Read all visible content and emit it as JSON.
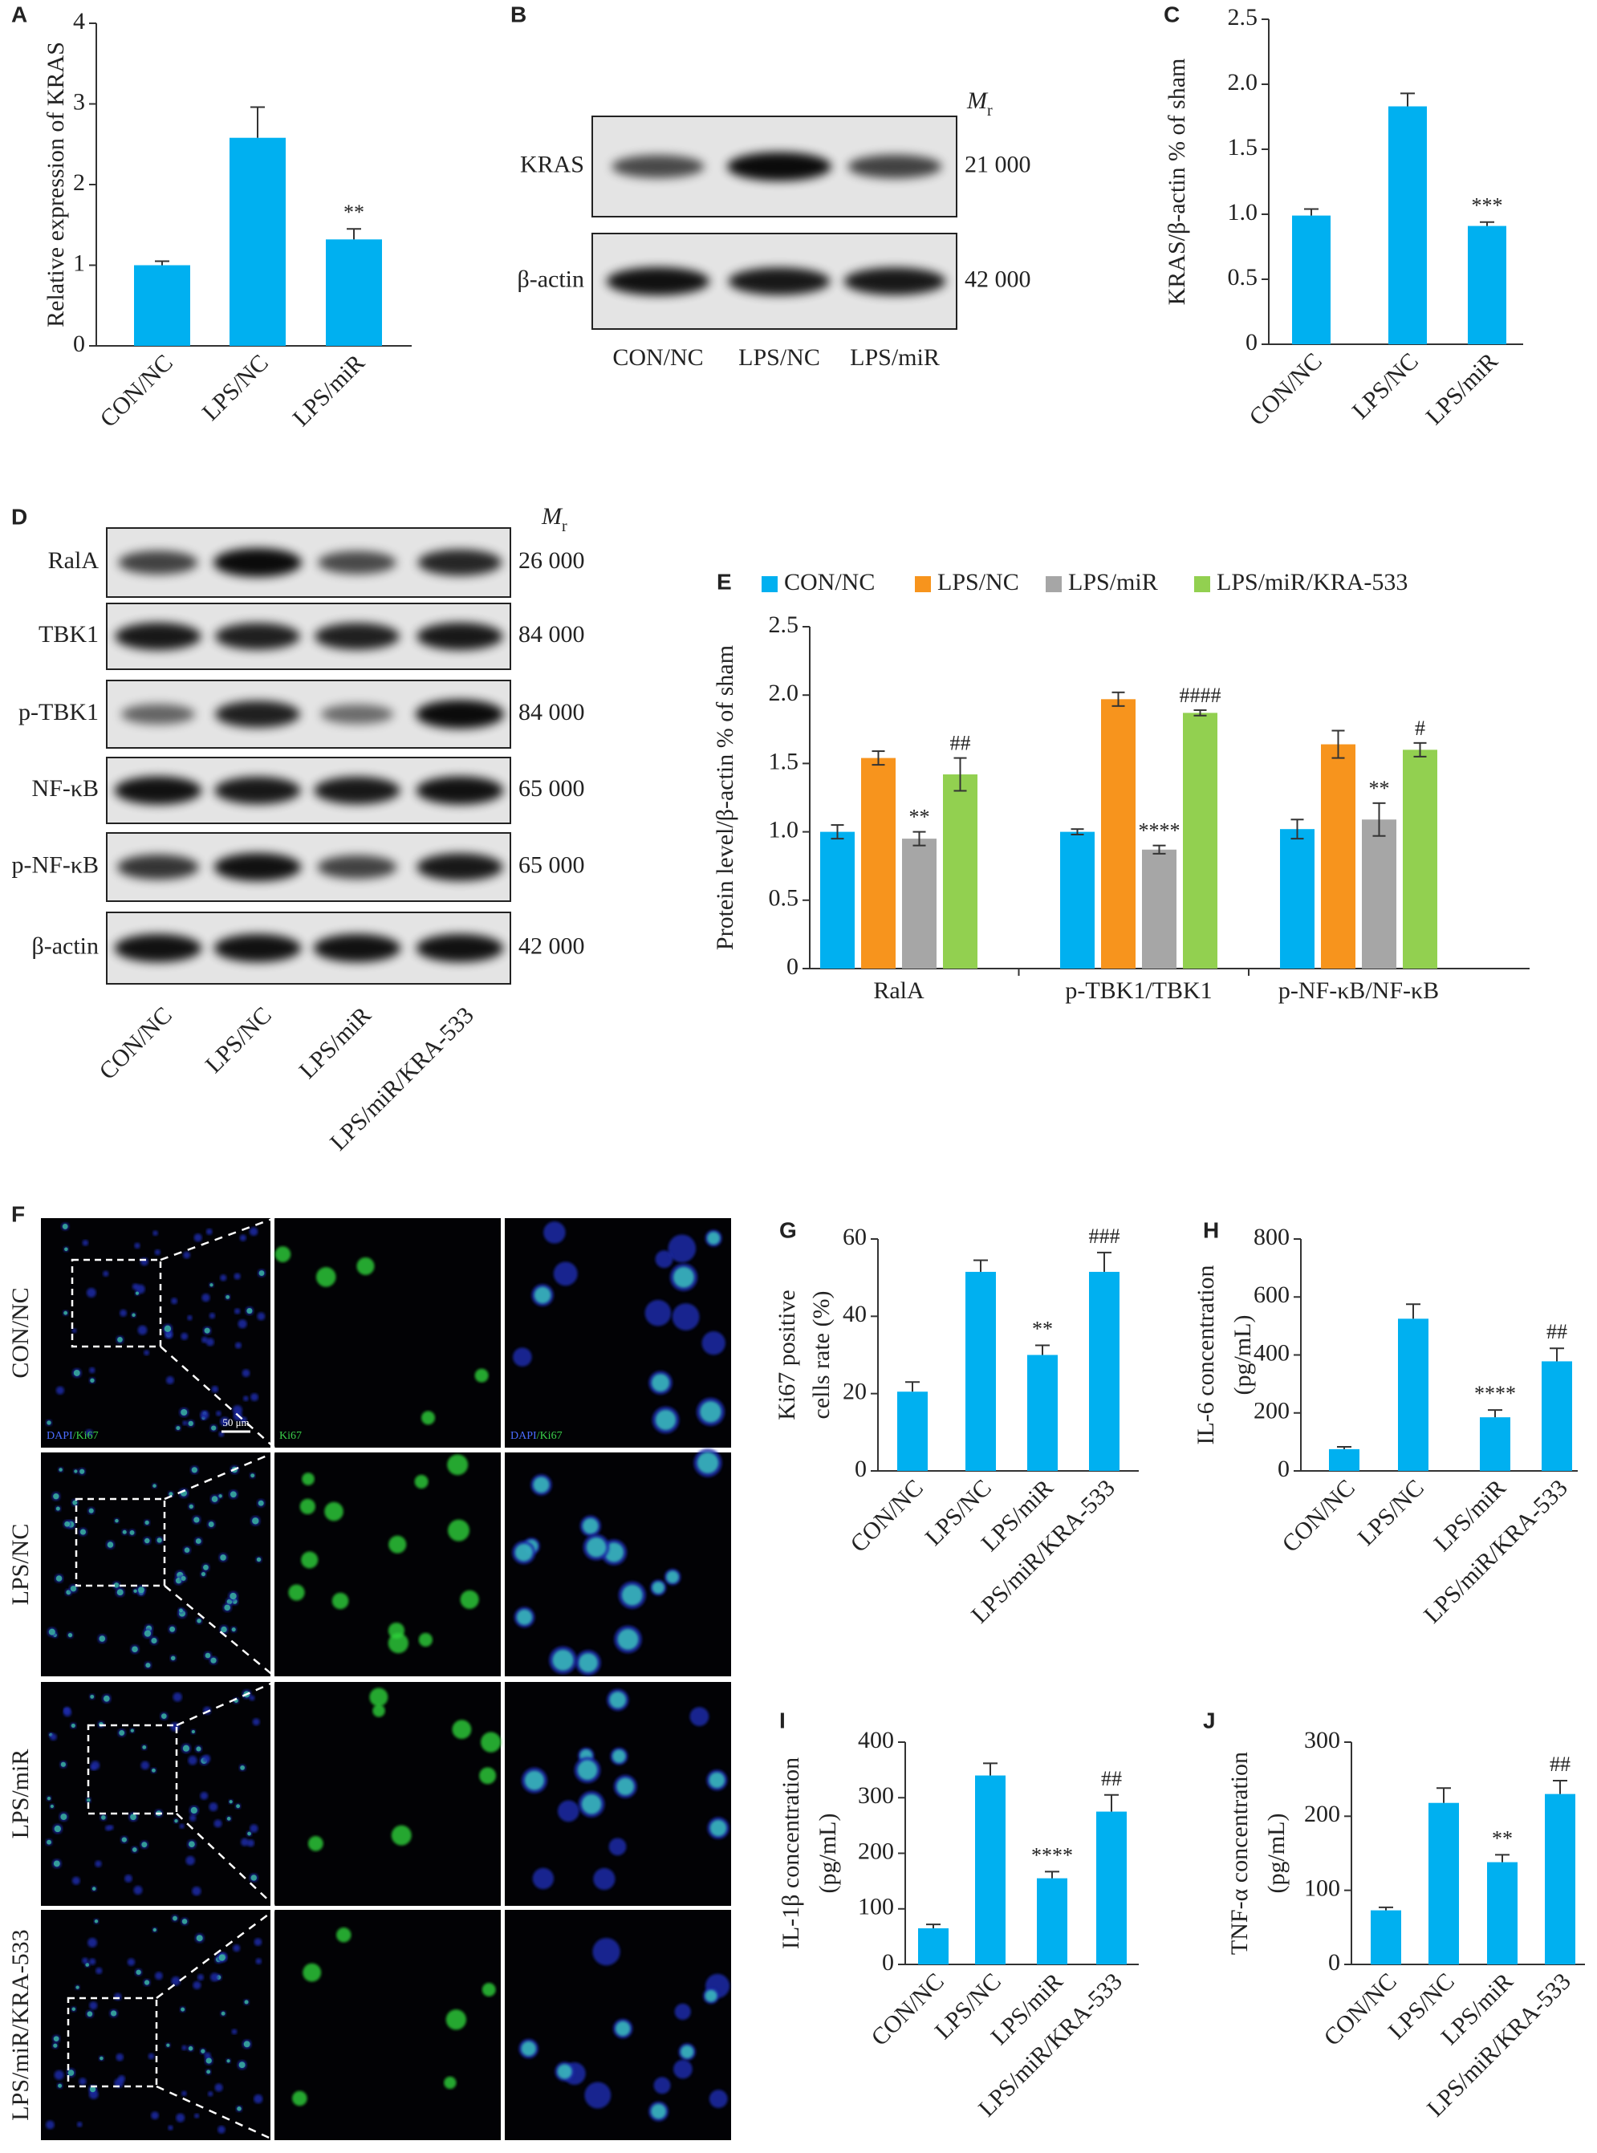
{
  "chart_data": [
    {
      "type": "bar",
      "panel": "A",
      "categories": [
        "CON/NC",
        "LPS/NC",
        "LPS/miR"
      ],
      "values": [
        1.0,
        2.58,
        1.32
      ],
      "errors": [
        0.05,
        0.38,
        0.13
      ],
      "annotations": [
        null,
        null,
        "**"
      ],
      "color": "#00b0f0",
      "ylim": [
        0,
        4
      ],
      "yticks": [
        0,
        1,
        2,
        3,
        4
      ],
      "ylabel": [
        "Relative expression of KRAS"
      ]
    },
    {
      "type": "bar",
      "panel": "C",
      "categories": [
        "CON/NC",
        "LPS/NC",
        "LPS/miR"
      ],
      "values": [
        0.99,
        1.83,
        0.91
      ],
      "errors": [
        0.05,
        0.1,
        0.03
      ],
      "annotations": [
        null,
        null,
        "***"
      ],
      "color": "#00b0f0",
      "ylim": [
        0,
        2.5
      ],
      "yticks": [
        0,
        0.5,
        {
          "value": 1,
          "label": "1.0"
        },
        1.5,
        {
          "value": 2,
          "label": "2.0"
        },
        2.5
      ],
      "ylabel": [
        "KRAS/β-actin % of sham"
      ]
    },
    {
      "type": "grouped_bar",
      "panel": "E",
      "categories": [
        "RalA",
        "p-TBK1/TBK1",
        "p-NF-κB/NF-κB"
      ],
      "series": [
        {
          "name": "CON/NC",
          "color": "#00b0f0",
          "values": [
            1.0,
            1.0,
            1.02
          ],
          "errors": [
            0.05,
            0.02,
            0.07
          ],
          "annotations": [
            null,
            null,
            null
          ]
        },
        {
          "name": "LPS/NC",
          "color": "#f7941d",
          "values": [
            1.54,
            1.97,
            1.64
          ],
          "errors": [
            0.05,
            0.05,
            0.1
          ],
          "annotations": [
            null,
            null,
            null
          ]
        },
        {
          "name": "LPS/miR",
          "color": "#a6a6a6",
          "values": [
            0.95,
            0.87,
            1.09
          ],
          "errors": [
            0.05,
            0.03,
            0.12
          ],
          "annotations": [
            "**",
            "****",
            "**"
          ]
        },
        {
          "name": "LPS/miR/KRA-533",
          "color": "#92d050",
          "values": [
            1.42,
            1.87,
            1.6
          ],
          "errors": [
            0.12,
            0.02,
            0.05
          ],
          "annotations": [
            "##",
            "####",
            "#"
          ]
        }
      ],
      "ylim": [
        0,
        2.5
      ],
      "yticks": [
        0,
        0.5,
        {
          "value": 1,
          "label": "1.0"
        },
        1.5,
        {
          "value": 2,
          "label": "2.0"
        },
        2.5
      ],
      "ylabel": [
        "Protein level/β-actin % of sham"
      ],
      "legend": "top"
    },
    {
      "type": "bar",
      "panel": "G",
      "categories": [
        "CON/NC",
        "LPS/NC",
        "LPS/miR",
        "LPS/miR/KRA-533"
      ],
      "values": [
        20.5,
        51.5,
        30,
        51.5
      ],
      "errors": [
        2.5,
        3,
        2.5,
        5
      ],
      "annotations": [
        null,
        null,
        "**",
        "###"
      ],
      "color": "#00b0f0",
      "ylim": [
        0,
        60
      ],
      "yticks": [
        0,
        20,
        40,
        60
      ],
      "ylabel": [
        "Ki67 positive",
        "cells rate (%)"
      ]
    },
    {
      "type": "bar",
      "panel": "H",
      "categories": [
        "CON/NC",
        "LPS/NC",
        "LPS/miR",
        "LPS/miR/KRA-533"
      ],
      "values": [
        75,
        525,
        185,
        378
      ],
      "errors": [
        8,
        50,
        25,
        45
      ],
      "annotations": [
        null,
        null,
        "****",
        "##"
      ],
      "color": "#00b0f0",
      "ylim": [
        0,
        800
      ],
      "yticks": [
        0,
        200,
        400,
        600,
        800
      ],
      "ylabel": [
        "IL-6 concentration",
        "(pg/mL)"
      ]
    },
    {
      "type": "bar",
      "panel": "I",
      "categories": [
        "CON/NC",
        "LPS/NC",
        "LPS/miR",
        "LPS/miR/KRA-533"
      ],
      "values": [
        65,
        340,
        155,
        275
      ],
      "errors": [
        7,
        22,
        12,
        30
      ],
      "annotations": [
        null,
        null,
        "****",
        "##"
      ],
      "color": "#00b0f0",
      "ylim": [
        0,
        400
      ],
      "yticks": [
        0,
        100,
        200,
        300,
        400
      ],
      "ylabel": [
        "IL-1β concentration",
        "(pg/mL)"
      ]
    },
    {
      "type": "bar",
      "panel": "J",
      "categories": [
        "CON/NC",
        "LPS/NC",
        "LPS/miR",
        "LPS/miR/KRA-533"
      ],
      "values": [
        73,
        218,
        138,
        230
      ],
      "errors": [
        4,
        20,
        10,
        18
      ],
      "annotations": [
        null,
        null,
        "**",
        "##"
      ],
      "color": "#00b0f0",
      "ylim": [
        0,
        300
      ],
      "yticks": [
        0,
        100,
        200,
        300
      ],
      "ylabel": [
        "TNF-α concentration",
        "(pg/mL)"
      ]
    }
  ],
  "blot_b": {
    "panel": "B",
    "mr": "M",
    "mr_sub": "r",
    "rows": [
      {
        "label": "KRAS",
        "mass": "21 000"
      },
      {
        "label": "β-actin",
        "mass": "42 000"
      }
    ],
    "lanes": [
      "CON/NC",
      "LPS/NC",
      "LPS/miR"
    ]
  },
  "blot_d": {
    "panel": "D",
    "mr": "M",
    "mr_sub": "r",
    "rows": [
      {
        "label": "RalA",
        "mass": "26 000"
      },
      {
        "label": "TBK1",
        "mass": "84 000"
      },
      {
        "label": "p-TBK1",
        "mass": "84 000"
      },
      {
        "label": "NF-κB",
        "mass": "65 000"
      },
      {
        "label": "p-NF-κB",
        "mass": "65 000"
      },
      {
        "label": "β-actin",
        "mass": "42 000"
      }
    ],
    "lanes": [
      "CON/NC",
      "LPS/NC",
      "LPS/miR",
      "LPS/miR/KRA-533"
    ]
  },
  "panel_f": {
    "panel": "F",
    "rows": [
      "CON/NC",
      "LPS/NC",
      "LPS/miR",
      "LPS/miR/KRA-533"
    ],
    "dapi": "DAPI",
    "sep": "/",
    "ki67": "Ki67",
    "scale": "50 μm"
  }
}
